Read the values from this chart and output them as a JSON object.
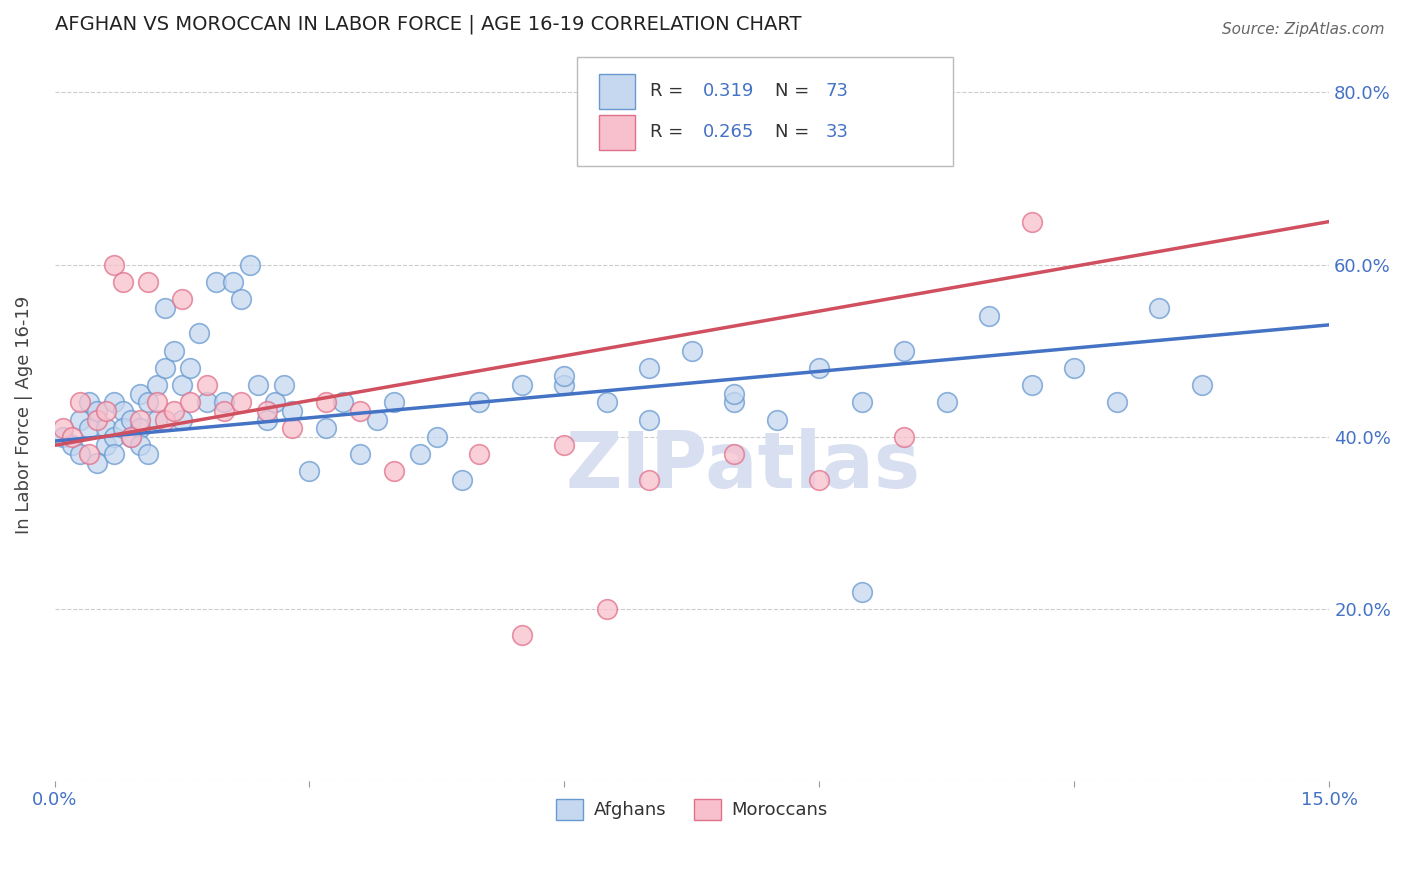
{
  "title": "AFGHAN VS MOROCCAN IN LABOR FORCE | AGE 16-19 CORRELATION CHART",
  "source_text": "Source: ZipAtlas.com",
  "ylabel": "In Labor Force | Age 16-19",
  "xlim": [
    0.0,
    0.15
  ],
  "ylim": [
    0.0,
    0.85
  ],
  "xticks": [
    0.0,
    0.03,
    0.06,
    0.09,
    0.12,
    0.15
  ],
  "xticklabels": [
    "0.0%",
    "",
    "",
    "",
    "",
    "15.0%"
  ],
  "ytick_positions": [
    0.0,
    0.2,
    0.4,
    0.6,
    0.8
  ],
  "right_ytick_positions": [
    0.2,
    0.4,
    0.6,
    0.8
  ],
  "right_ytick_labels": [
    "20.0%",
    "40.0%",
    "60.0%",
    "80.0%"
  ],
  "legend_r_afghan": "0.319",
  "legend_n_afghan": "73",
  "legend_r_moroccan": "0.265",
  "legend_n_moroccan": "33",
  "afghan_face_color": "#c5d8f0",
  "afghan_edge_color": "#6899d0",
  "moroccan_face_color": "#f8c0cc",
  "moroccan_edge_color": "#e0708a",
  "afghan_line_color": "#4472c4",
  "moroccan_line_color": "#d05060",
  "title_color": "#222222",
  "axis_label_color": "#4472c4",
  "watermark": "ZIPatlas",
  "watermark_color": "#d8dff0",
  "background_color": "#ffffff",
  "grid_color": "#cccccc",
  "afghans_x": [
    0.001,
    0.002,
    0.003,
    0.003,
    0.004,
    0.004,
    0.005,
    0.005,
    0.006,
    0.006,
    0.007,
    0.007,
    0.007,
    0.008,
    0.008,
    0.009,
    0.009,
    0.01,
    0.01,
    0.01,
    0.011,
    0.011,
    0.012,
    0.012,
    0.013,
    0.013,
    0.014,
    0.015,
    0.015,
    0.016,
    0.017,
    0.018,
    0.019,
    0.02,
    0.021,
    0.022,
    0.023,
    0.024,
    0.025,
    0.026,
    0.027,
    0.028,
    0.03,
    0.032,
    0.034,
    0.036,
    0.038,
    0.04,
    0.043,
    0.045,
    0.048,
    0.05,
    0.055,
    0.06,
    0.065,
    0.07,
    0.075,
    0.08,
    0.085,
    0.09,
    0.095,
    0.1,
    0.105,
    0.11,
    0.115,
    0.12,
    0.125,
    0.13,
    0.135,
    0.06,
    0.07,
    0.08,
    0.095
  ],
  "afghans_y": [
    0.4,
    0.39,
    0.42,
    0.38,
    0.41,
    0.44,
    0.43,
    0.37,
    0.41,
    0.39,
    0.44,
    0.4,
    0.38,
    0.43,
    0.41,
    0.4,
    0.42,
    0.45,
    0.41,
    0.39,
    0.44,
    0.38,
    0.46,
    0.42,
    0.55,
    0.48,
    0.5,
    0.46,
    0.42,
    0.48,
    0.52,
    0.44,
    0.58,
    0.44,
    0.58,
    0.56,
    0.6,
    0.46,
    0.42,
    0.44,
    0.46,
    0.43,
    0.36,
    0.41,
    0.44,
    0.38,
    0.42,
    0.44,
    0.38,
    0.4,
    0.35,
    0.44,
    0.46,
    0.46,
    0.44,
    0.48,
    0.5,
    0.44,
    0.42,
    0.48,
    0.44,
    0.5,
    0.44,
    0.54,
    0.46,
    0.48,
    0.44,
    0.55,
    0.46,
    0.47,
    0.42,
    0.45,
    0.22
  ],
  "moroccans_x": [
    0.001,
    0.002,
    0.003,
    0.004,
    0.005,
    0.006,
    0.007,
    0.008,
    0.009,
    0.01,
    0.011,
    0.012,
    0.013,
    0.014,
    0.015,
    0.016,
    0.018,
    0.02,
    0.022,
    0.025,
    0.028,
    0.032,
    0.036,
    0.04,
    0.05,
    0.06,
    0.07,
    0.08,
    0.09,
    0.1,
    0.055,
    0.065,
    0.115
  ],
  "moroccans_y": [
    0.41,
    0.4,
    0.44,
    0.38,
    0.42,
    0.43,
    0.6,
    0.58,
    0.4,
    0.42,
    0.58,
    0.44,
    0.42,
    0.43,
    0.56,
    0.44,
    0.46,
    0.43,
    0.44,
    0.43,
    0.41,
    0.44,
    0.43,
    0.36,
    0.38,
    0.39,
    0.35,
    0.38,
    0.35,
    0.4,
    0.17,
    0.2,
    0.65
  ],
  "afghan_trend_x": [
    0.0,
    0.15
  ],
  "afghan_trend_y": [
    0.395,
    0.53
  ],
  "moroccan_trend_x": [
    0.0,
    0.15
  ],
  "moroccan_trend_y": [
    0.39,
    0.65
  ]
}
